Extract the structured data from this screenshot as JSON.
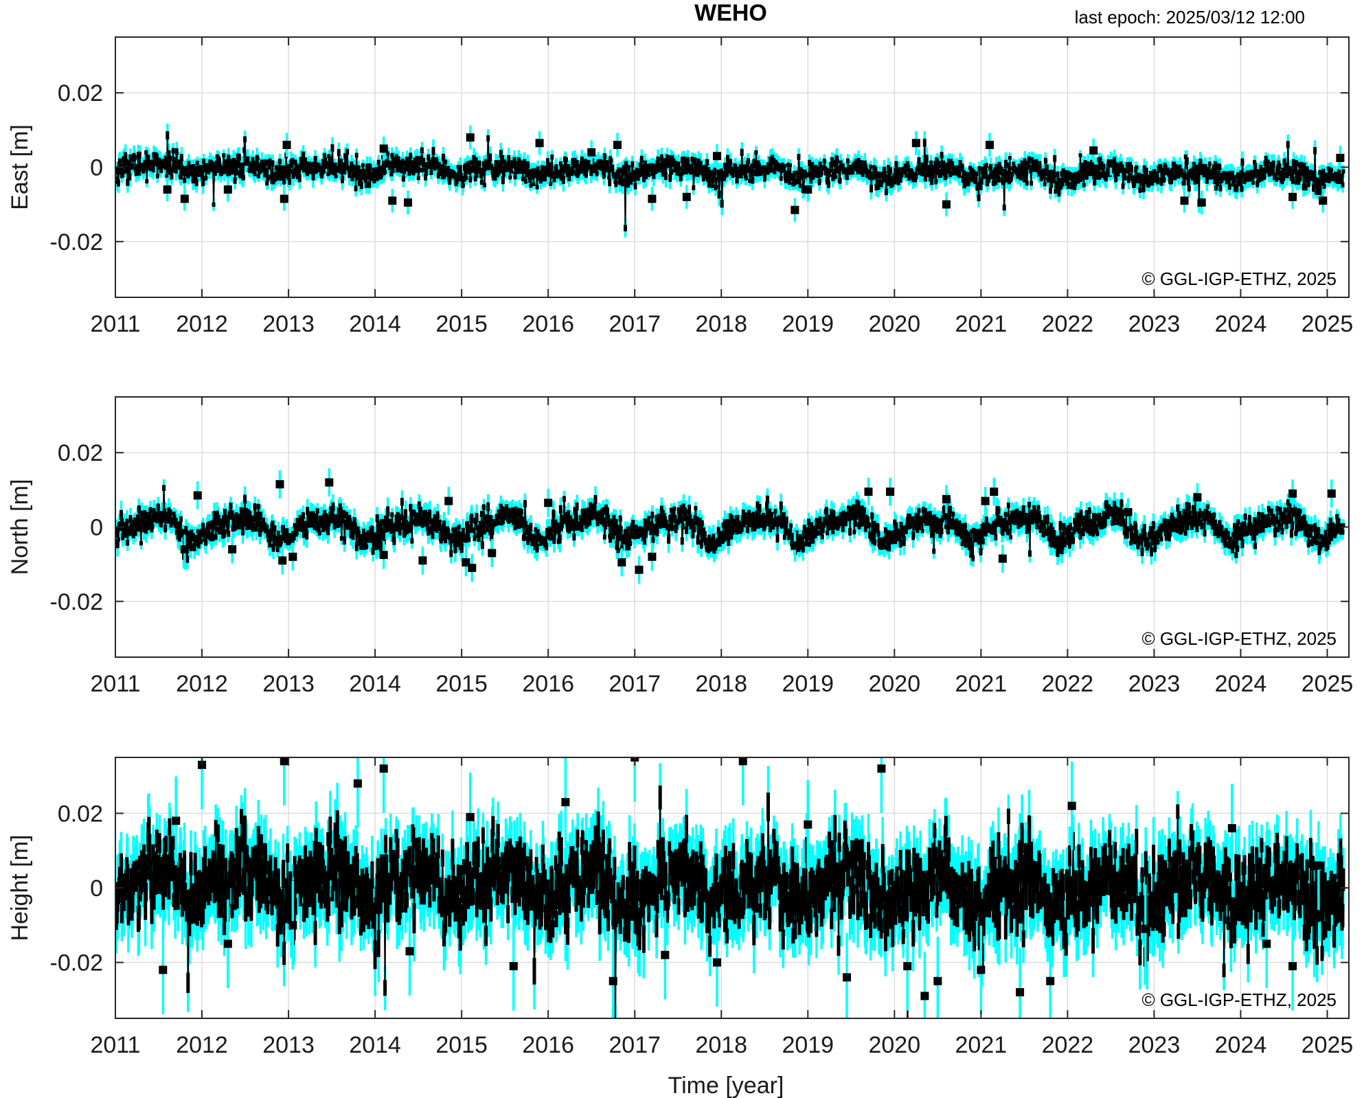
{
  "header": {
    "title": "WEHO",
    "last_epoch": "last epoch: 2025/03/12 12:00"
  },
  "xlabel": "Time [year]",
  "copyright": "©  GGL-IGP-ETHZ, 2025",
  "colors": {
    "error_bar": "#00ffff",
    "marker": "#000000",
    "grid": "#dcdcdc",
    "axis": "#262626"
  },
  "chart_data": [
    {
      "type": "scatter",
      "name": "east",
      "ylabel": "East [m]",
      "xlim": [
        2011.0,
        2025.25
      ],
      "ylim": [
        -0.035,
        0.035
      ],
      "xticks": [
        2011,
        2012,
        2013,
        2014,
        2015,
        2016,
        2017,
        2018,
        2019,
        2020,
        2021,
        2022,
        2023,
        2024,
        2025
      ],
      "yticks": [
        -0.02,
        0,
        0.02
      ],
      "ytick_labels": [
        "-0.02",
        "0",
        "0.02"
      ],
      "grid": true,
      "series_shape": {
        "noise": 0.0016,
        "err": 0.0023,
        "seasonal": 0.0012,
        "trend_start": 0.0,
        "trend_end": -0.002,
        "sample_step_days": 3
      },
      "highlighted_points": [
        [
          2011.6,
          -0.006
        ],
        [
          2011.8,
          -0.0085
        ],
        [
          2012.3,
          -0.006
        ],
        [
          2012.95,
          -0.0085
        ],
        [
          2012.98,
          0.006
        ],
        [
          2014.2,
          -0.009
        ],
        [
          2014.38,
          -0.0095
        ],
        [
          2014.1,
          0.005
        ],
        [
          2015.1,
          0.008
        ],
        [
          2015.9,
          0.0065
        ],
        [
          2016.5,
          0.004
        ],
        [
          2016.8,
          0.006
        ],
        [
          2017.2,
          -0.0085
        ],
        [
          2017.6,
          -0.008
        ],
        [
          2017.95,
          0.003
        ],
        [
          2018.85,
          -0.0115
        ],
        [
          2019.0,
          -0.006
        ],
        [
          2020.25,
          0.0065
        ],
        [
          2020.6,
          -0.01
        ],
        [
          2021.1,
          0.006
        ],
        [
          2022.3,
          0.0045
        ],
        [
          2022.5,
          0.001
        ],
        [
          2023.35,
          -0.009
        ],
        [
          2023.55,
          -0.0095
        ],
        [
          2024.6,
          -0.008
        ],
        [
          2024.95,
          -0.009
        ],
        [
          2025.15,
          0.0025
        ]
      ]
    },
    {
      "type": "scatter",
      "name": "north",
      "ylabel": "North [m]",
      "xlim": [
        2011.0,
        2025.25
      ],
      "ylim": [
        -0.035,
        0.035
      ],
      "xticks": [
        2011,
        2012,
        2013,
        2014,
        2015,
        2016,
        2017,
        2018,
        2019,
        2020,
        2021,
        2022,
        2023,
        2024,
        2025
      ],
      "yticks": [
        -0.02,
        0,
        0.02
      ],
      "ytick_labels": [
        "-0.02",
        "0",
        "0.02"
      ],
      "grid": true,
      "series_shape": {
        "noise": 0.0018,
        "err": 0.0027,
        "seasonal": 0.0028,
        "trend_start": 0.0,
        "trend_end": 0.0,
        "sample_step_days": 3
      },
      "highlighted_points": [
        [
          2011.8,
          -0.006
        ],
        [
          2011.95,
          0.0085
        ],
        [
          2012.35,
          -0.006
        ],
        [
          2012.9,
          0.0115
        ],
        [
          2012.93,
          -0.009
        ],
        [
          2013.05,
          -0.008
        ],
        [
          2013.47,
          0.012
        ],
        [
          2014.1,
          -0.0075
        ],
        [
          2014.55,
          -0.009
        ],
        [
          2014.85,
          0.007
        ],
        [
          2015.05,
          -0.0095
        ],
        [
          2015.12,
          -0.011
        ],
        [
          2015.35,
          -0.007
        ],
        [
          2016.0,
          0.0065
        ],
        [
          2016.85,
          -0.0095
        ],
        [
          2017.05,
          -0.0115
        ],
        [
          2017.2,
          -0.008
        ],
        [
          2018.85,
          -0.005
        ],
        [
          2019.7,
          0.0095
        ],
        [
          2019.95,
          0.0095
        ],
        [
          2020.6,
          0.0075
        ],
        [
          2021.05,
          0.007
        ],
        [
          2021.15,
          0.0095
        ],
        [
          2021.25,
          -0.0085
        ],
        [
          2022.7,
          0.004
        ],
        [
          2023.5,
          0.008
        ],
        [
          2024.6,
          0.009
        ],
        [
          2025.05,
          0.009
        ]
      ]
    },
    {
      "type": "scatter",
      "name": "height",
      "ylabel": "Height [m]",
      "xlim": [
        2011.0,
        2025.25
      ],
      "ylim": [
        -0.035,
        0.035
      ],
      "xticks": [
        2011,
        2012,
        2013,
        2014,
        2015,
        2016,
        2017,
        2018,
        2019,
        2020,
        2021,
        2022,
        2023,
        2024,
        2025
      ],
      "yticks": [
        -0.02,
        0,
        0.02
      ],
      "ytick_labels": [
        "-0.02",
        "0",
        "0.02"
      ],
      "grid": true,
      "series_shape": {
        "noise": 0.0055,
        "err": 0.0085,
        "seasonal": 0.0035,
        "trend_start": 0.0015,
        "trend_end": -0.001,
        "sample_step_days": 3
      },
      "highlighted_points": [
        [
          2011.55,
          -0.022
        ],
        [
          2011.7,
          0.018
        ],
        [
          2012.0,
          0.033
        ],
        [
          2012.3,
          -0.015
        ],
        [
          2012.95,
          0.034
        ],
        [
          2013.05,
          -0.01
        ],
        [
          2013.8,
          0.028
        ],
        [
          2014.1,
          0.032
        ],
        [
          2014.4,
          -0.017
        ],
        [
          2015.1,
          0.019
        ],
        [
          2015.6,
          -0.021
        ],
        [
          2016.2,
          0.023
        ],
        [
          2016.75,
          -0.025
        ],
        [
          2017.0,
          0.035
        ],
        [
          2017.35,
          -0.018
        ],
        [
          2017.95,
          -0.02
        ],
        [
          2018.25,
          0.034
        ],
        [
          2019.0,
          0.017
        ],
        [
          2019.45,
          -0.024
        ],
        [
          2019.85,
          0.032
        ],
        [
          2020.15,
          -0.021
        ],
        [
          2020.35,
          -0.029
        ],
        [
          2020.5,
          -0.025
        ],
        [
          2021.0,
          -0.022
        ],
        [
          2021.45,
          -0.028
        ],
        [
          2021.8,
          -0.025
        ],
        [
          2022.05,
          0.022
        ],
        [
          2022.9,
          -0.011
        ],
        [
          2023.9,
          0.016
        ],
        [
          2024.3,
          -0.015
        ],
        [
          2024.6,
          -0.021
        ],
        [
          2024.9,
          0.006
        ]
      ]
    }
  ]
}
